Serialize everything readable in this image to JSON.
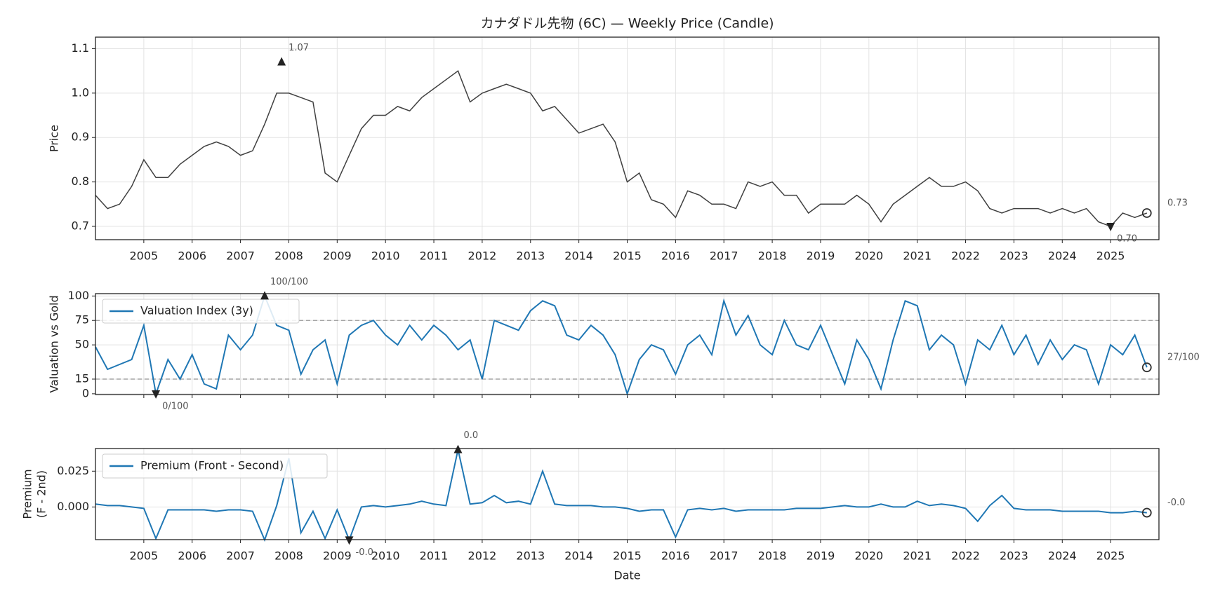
{
  "chart_data": [
    {
      "type": "line",
      "title": "カナダドル先物 (6C) — Weekly Price (Candle)",
      "ylabel": [
        "Price"
      ],
      "x": [
        2004,
        2004.25,
        2004.5,
        2004.75,
        2005,
        2005.25,
        2005.5,
        2005.75,
        2006,
        2006.25,
        2006.5,
        2006.75,
        2007,
        2007.25,
        2007.5,
        2007.75,
        2008,
        2008.25,
        2008.5,
        2008.75,
        2009,
        2009.25,
        2009.5,
        2009.75,
        2010,
        2010.25,
        2010.5,
        2010.75,
        2011,
        2011.25,
        2011.5,
        2011.75,
        2012,
        2012.25,
        2012.5,
        2012.75,
        2013,
        2013.25,
        2013.5,
        2013.75,
        2014,
        2014.25,
        2014.5,
        2014.75,
        2015,
        2015.25,
        2015.5,
        2015.75,
        2016,
        2016.25,
        2016.5,
        2016.75,
        2017,
        2017.25,
        2017.5,
        2017.75,
        2018,
        2018.25,
        2018.5,
        2018.75,
        2019,
        2019.25,
        2019.5,
        2019.75,
        2020,
        2020.25,
        2020.5,
        2020.75,
        2021,
        2021.25,
        2021.5,
        2021.75,
        2022,
        2022.25,
        2022.5,
        2022.75,
        2023,
        2023.25,
        2023.5,
        2023.75,
        2024,
        2024.25,
        2024.5,
        2024.75,
        2025,
        2025.25,
        2025.5,
        2025.75
      ],
      "series": [
        {
          "color": "#404040",
          "values": [
            0.77,
            0.74,
            0.75,
            0.79,
            0.85,
            0.81,
            0.81,
            0.84,
            0.86,
            0.88,
            0.89,
            0.88,
            0.86,
            0.87,
            0.93,
            1.0,
            1.0,
            0.99,
            0.98,
            0.82,
            0.8,
            0.86,
            0.92,
            0.95,
            0.95,
            0.97,
            0.96,
            0.99,
            1.01,
            1.03,
            1.05,
            0.98,
            1.0,
            1.01,
            1.02,
            1.01,
            1.0,
            0.96,
            0.97,
            0.94,
            0.91,
            0.92,
            0.93,
            0.89,
            0.8,
            0.82,
            0.76,
            0.75,
            0.72,
            0.78,
            0.77,
            0.75,
            0.75,
            0.74,
            0.8,
            0.79,
            0.8,
            0.77,
            0.77,
            0.73,
            0.75,
            0.75,
            0.75,
            0.77,
            0.75,
            0.71,
            0.75,
            0.77,
            0.79,
            0.81,
            0.79,
            0.79,
            0.8,
            0.78,
            0.74,
            0.73,
            0.74,
            0.74,
            0.74,
            0.73,
            0.74,
            0.73,
            0.74,
            0.71,
            0.7,
            0.73,
            0.72,
            0.73
          ]
        }
      ],
      "xlim": [
        2004,
        2026
      ],
      "xticks": [
        2005,
        2006,
        2007,
        2008,
        2009,
        2010,
        2011,
        2012,
        2013,
        2014,
        2015,
        2016,
        2017,
        2018,
        2019,
        2020,
        2021,
        2022,
        2023,
        2024,
        2025
      ],
      "xtick_labels": true,
      "ylim": [
        0.67,
        1.126
      ],
      "yticks": [
        0.7,
        0.8,
        0.9,
        {
          "value": 1,
          "label": "1.0"
        },
        1.1
      ],
      "grid": true,
      "annotations": [
        {
          "x": 2007.85,
          "y": 1.07,
          "label": "1.07",
          "marker": "triangle-up"
        },
        {
          "x": 2025,
          "y": 0.7,
          "label": "0.70",
          "marker": "triangle-down"
        },
        {
          "x": 2025.75,
          "y": 0.73,
          "label": "0.73",
          "marker": "circle"
        }
      ]
    },
    {
      "type": "line",
      "ylabel": [
        "Valuation vs Gold"
      ],
      "x": [
        2004,
        2004.25,
        2004.5,
        2004.75,
        2005,
        2005.25,
        2005.5,
        2005.75,
        2006,
        2006.25,
        2006.5,
        2006.75,
        2007,
        2007.25,
        2007.5,
        2007.75,
        2008,
        2008.25,
        2008.5,
        2008.75,
        2009,
        2009.25,
        2009.5,
        2009.75,
        2010,
        2010.25,
        2010.5,
        2010.75,
        2011,
        2011.25,
        2011.5,
        2011.75,
        2012,
        2012.25,
        2012.5,
        2012.75,
        2013,
        2013.25,
        2013.5,
        2013.75,
        2014,
        2014.25,
        2014.5,
        2014.75,
        2015,
        2015.25,
        2015.5,
        2015.75,
        2016,
        2016.25,
        2016.5,
        2016.75,
        2017,
        2017.25,
        2017.5,
        2017.75,
        2018,
        2018.25,
        2018.5,
        2018.75,
        2019,
        2019.25,
        2019.5,
        2019.75,
        2020,
        2020.25,
        2020.5,
        2020.75,
        2021,
        2021.25,
        2021.5,
        2021.75,
        2022,
        2022.25,
        2022.5,
        2022.75,
        2023,
        2023.25,
        2023.5,
        2023.75,
        2024,
        2024.25,
        2024.5,
        2024.75,
        2025,
        2025.25,
        2025.5,
        2025.75
      ],
      "series": [
        {
          "name": "Valuation Index (3y)",
          "color": "#1f77b4",
          "values": [
            48,
            25,
            30,
            35,
            70,
            0,
            35,
            15,
            40,
            10,
            5,
            60,
            45,
            60,
            100,
            70,
            65,
            20,
            45,
            55,
            10,
            60,
            70,
            75,
            60,
            50,
            70,
            55,
            70,
            60,
            45,
            55,
            15,
            75,
            70,
            65,
            85,
            95,
            90,
            60,
            55,
            70,
            60,
            40,
            0,
            35,
            50,
            45,
            20,
            50,
            60,
            40,
            95,
            60,
            80,
            50,
            40,
            75,
            50,
            45,
            70,
            40,
            10,
            55,
            35,
            5,
            55,
            95,
            90,
            45,
            60,
            50,
            10,
            55,
            45,
            70,
            40,
            60,
            30,
            55,
            35,
            50,
            45,
            10,
            50,
            40,
            60,
            27
          ]
        }
      ],
      "xlim": [
        2004,
        2026
      ],
      "xticks": [
        2005,
        2006,
        2007,
        2008,
        2009,
        2010,
        2011,
        2012,
        2013,
        2014,
        2015,
        2016,
        2017,
        2018,
        2019,
        2020,
        2021,
        2022,
        2023,
        2024,
        2025
      ],
      "xtick_labels": false,
      "ylim": [
        -0.8,
        102.4
      ],
      "yticks": [
        0,
        15,
        50,
        75,
        100
      ],
      "grid": true,
      "hlines": [
        15,
        75
      ],
      "legend": "upper left",
      "annotations": [
        {
          "x": 2007.5,
          "y": 100,
          "label": "100/100",
          "marker": "triangle-up"
        },
        {
          "x": 2005.25,
          "y": 0,
          "label": "0/100",
          "marker": "triangle-down"
        },
        {
          "x": 2025.75,
          "y": 27,
          "label": "27/100",
          "marker": "circle"
        }
      ]
    },
    {
      "type": "line",
      "ylabel": [
        "Premium",
        "(F - 2nd)"
      ],
      "xlabel": "Date",
      "x": [
        2004,
        2004.25,
        2004.5,
        2004.75,
        2005,
        2005.25,
        2005.5,
        2005.75,
        2006,
        2006.25,
        2006.5,
        2006.75,
        2007,
        2007.25,
        2007.5,
        2007.75,
        2008,
        2008.25,
        2008.5,
        2008.75,
        2009,
        2009.25,
        2009.5,
        2009.75,
        2010,
        2010.25,
        2010.5,
        2010.75,
        2011,
        2011.25,
        2011.5,
        2011.75,
        2012,
        2012.25,
        2012.5,
        2012.75,
        2013,
        2013.25,
        2013.5,
        2013.75,
        2014,
        2014.25,
        2014.5,
        2014.75,
        2015,
        2015.25,
        2015.5,
        2015.75,
        2016,
        2016.25,
        2016.5,
        2016.75,
        2017,
        2017.25,
        2017.5,
        2017.75,
        2018,
        2018.25,
        2018.5,
        2018.75,
        2019,
        2019.25,
        2019.5,
        2019.75,
        2020,
        2020.25,
        2020.5,
        2020.75,
        2021,
        2021.25,
        2021.5,
        2021.75,
        2022,
        2022.25,
        2022.5,
        2022.75,
        2023,
        2023.25,
        2023.5,
        2023.75,
        2024,
        2024.25,
        2024.5,
        2024.75,
        2025,
        2025.25,
        2025.5,
        2025.75
      ],
      "series": [
        {
          "name": "Premium (Front - Second)",
          "color": "#1f77b4",
          "values": [
            0.002,
            0.001,
            0.001,
            0,
            -0.001,
            -0.022,
            -0.002,
            -0.002,
            -0.002,
            -0.002,
            -0.003,
            -0.002,
            -0.002,
            -0.003,
            -0.023,
            0.001,
            0.034,
            -0.018,
            -0.003,
            -0.022,
            -0.002,
            -0.023,
            0,
            0.001,
            0,
            0.001,
            0.002,
            0.004,
            0.002,
            0.001,
            0.04,
            0.002,
            0.003,
            0.008,
            0.003,
            0.004,
            0.002,
            0.025,
            0.002,
            0.001,
            0.001,
            0.001,
            0,
            0,
            -0.001,
            -0.003,
            -0.002,
            -0.002,
            -0.021,
            -0.002,
            -0.001,
            -0.002,
            -0.001,
            -0.003,
            -0.002,
            -0.002,
            -0.002,
            -0.002,
            -0.001,
            -0.001,
            -0.001,
            0,
            0.001,
            0,
            0,
            0.002,
            0,
            0,
            0.004,
            0.001,
            0.002,
            0.001,
            -0.001,
            -0.01,
            0.001,
            0.008,
            -0.001,
            -0.002,
            -0.002,
            -0.002,
            -0.003,
            -0.003,
            -0.003,
            -0.003,
            -0.004,
            -0.004,
            -0.003,
            -0.004
          ]
        }
      ],
      "xlim": [
        2004,
        2026
      ],
      "xticks": [
        2005,
        2006,
        2007,
        2008,
        2009,
        2010,
        2011,
        2012,
        2013,
        2014,
        2015,
        2016,
        2017,
        2018,
        2019,
        2020,
        2021,
        2022,
        2023,
        2024,
        2025
      ],
      "xtick_labels": true,
      "ylim": [
        -0.0228,
        0.0408
      ],
      "yticks": [
        {
          "value": 0,
          "label": "0.000"
        },
        {
          "value": 0.025,
          "label": "0.025"
        }
      ],
      "grid": true,
      "legend": "upper left",
      "annotations": [
        {
          "x": 2011.5,
          "y": 0.04,
          "label": "0.0",
          "marker": "triangle-up"
        },
        {
          "x": 2009.25,
          "y": -0.023,
          "label": "-0.0",
          "marker": "triangle-down"
        },
        {
          "x": 2025.75,
          "y": -0.004,
          "label": "-0.0",
          "marker": "circle"
        }
      ]
    }
  ]
}
